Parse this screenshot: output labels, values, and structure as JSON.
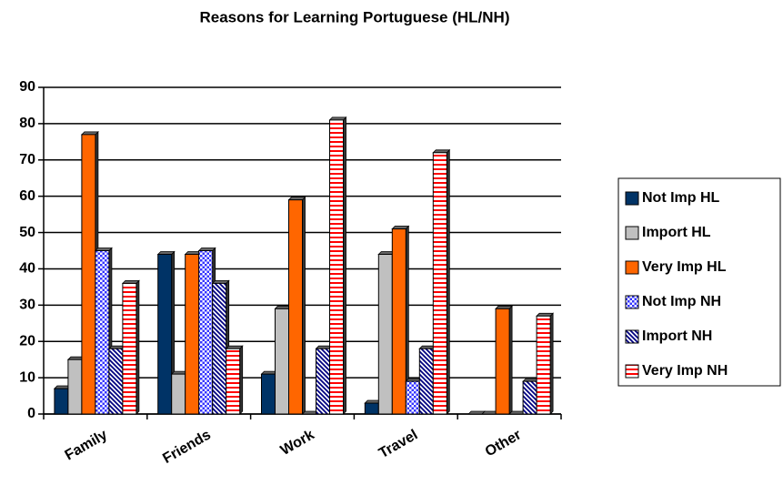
{
  "chart_data": {
    "type": "bar",
    "title": "Reasons for Learning Portuguese (HL/NH)",
    "categories": [
      "Family",
      "Friends",
      "Work",
      "Travel",
      "Other"
    ],
    "series": [
      {
        "name": "Not Imp HL",
        "color": "#003366",
        "pattern": "solid",
        "values": [
          7,
          44,
          11,
          3,
          0
        ]
      },
      {
        "name": "Import HL",
        "color": "#c0c0c0",
        "pattern": "solid",
        "values": [
          15,
          11,
          29,
          44,
          0
        ]
      },
      {
        "name": "Very Imp HL",
        "color": "#ff6600",
        "pattern": "solid",
        "values": [
          77,
          44,
          59,
          51,
          29
        ]
      },
      {
        "name": "Not Imp NH",
        "color": "#3333ff",
        "pattern": "dots",
        "values": [
          45,
          45,
          0,
          9,
          0
        ]
      },
      {
        "name": "Import NH",
        "color": "#000080",
        "pattern": "diagonal",
        "values": [
          18,
          36,
          18,
          18,
          9
        ]
      },
      {
        "name": "Very Imp NH",
        "color": "#ff0000",
        "pattern": "horizontal",
        "values": [
          36,
          18,
          81,
          72,
          27
        ]
      }
    ],
    "ylim": [
      0,
      90
    ],
    "yticks": [
      0,
      10,
      20,
      30,
      40,
      50,
      60,
      70,
      80,
      90
    ],
    "grid": true,
    "legend": "right"
  }
}
